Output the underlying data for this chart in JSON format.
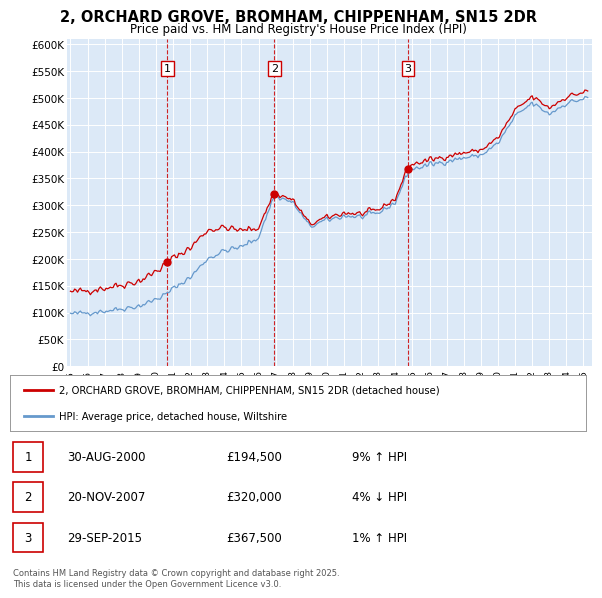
{
  "title": "2, ORCHARD GROVE, BROMHAM, CHIPPENHAM, SN15 2DR",
  "subtitle": "Price paid vs. HM Land Registry's House Price Index (HPI)",
  "plot_bg_color": "#dce9f7",
  "sale_info": [
    {
      "label": "1",
      "date": "30-AUG-2000",
      "price": "£194,500",
      "hpi": "9% ↑ HPI"
    },
    {
      "label": "2",
      "date": "20-NOV-2007",
      "price": "£320,000",
      "hpi": "4% ↓ HPI"
    },
    {
      "label": "3",
      "date": "29-SEP-2015",
      "price": "£367,500",
      "hpi": "1% ↑ HPI"
    }
  ],
  "legend_entries": [
    "2, ORCHARD GROVE, BROMHAM, CHIPPENHAM, SN15 2DR (detached house)",
    "HPI: Average price, detached house, Wiltshire"
  ],
  "footer": "Contains HM Land Registry data © Crown copyright and database right 2025.\nThis data is licensed under the Open Government Licence v3.0.",
  "ylim": [
    0,
    600000
  ],
  "yticks": [
    0,
    50000,
    100000,
    150000,
    200000,
    250000,
    300000,
    350000,
    400000,
    450000,
    500000,
    550000,
    600000
  ],
  "price_line_color": "#cc0000",
  "hpi_line_color": "#6699cc",
  "grid_color": "#ffffff",
  "sale_marker_color": "#cc0000",
  "sale_vline_color": "#cc0000"
}
